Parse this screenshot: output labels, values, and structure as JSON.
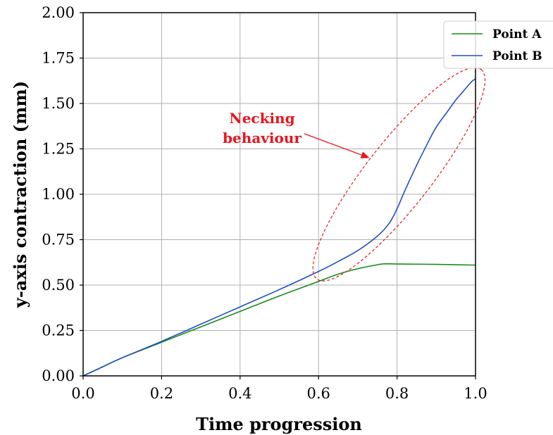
{
  "chart_data": {
    "type": "line",
    "title": "",
    "xlabel": "Time progression",
    "ylabel": "y-axis contraction (mm)",
    "xlim": [
      0.0,
      1.0
    ],
    "ylim": [
      0.0,
      2.0
    ],
    "xticks": [
      "0.0",
      "0.2",
      "0.4",
      "0.6",
      "0.8",
      "1.0"
    ],
    "yticks": [
      "0.00",
      "0.25",
      "0.50",
      "0.75",
      "1.00",
      "1.25",
      "1.50",
      "1.75",
      "2.00"
    ],
    "grid": true,
    "legend_position": "top-right",
    "series": [
      {
        "name": "Point A",
        "color": "#1a8a1a",
        "x": [
          0.0,
          0.02,
          0.05,
          0.1,
          0.2,
          0.3,
          0.4,
          0.5,
          0.6,
          0.65,
          0.7,
          0.75,
          0.77,
          0.8,
          0.9,
          1.0
        ],
        "y": [
          0.0,
          0.02,
          0.05,
          0.1,
          0.185,
          0.27,
          0.355,
          0.44,
          0.52,
          0.56,
          0.59,
          0.612,
          0.617,
          0.616,
          0.614,
          0.61
        ]
      },
      {
        "name": "Point B",
        "color": "#1f4fc4",
        "x": [
          0.0,
          0.02,
          0.05,
          0.1,
          0.2,
          0.3,
          0.4,
          0.5,
          0.6,
          0.65,
          0.7,
          0.75,
          0.78,
          0.8,
          0.82,
          0.85,
          0.88,
          0.9,
          0.93,
          0.95,
          0.97,
          0.99,
          1.0
        ],
        "y": [
          0.0,
          0.02,
          0.05,
          0.1,
          0.19,
          0.285,
          0.38,
          0.475,
          0.575,
          0.63,
          0.69,
          0.77,
          0.84,
          0.92,
          1.02,
          1.16,
          1.29,
          1.37,
          1.46,
          1.52,
          1.57,
          1.62,
          1.635
        ]
      }
    ],
    "annotation": {
      "text_lines": [
        "Necking",
        "behaviour"
      ],
      "color": "#e8141e",
      "arrow_target": {
        "x": 0.73,
        "y": 1.2
      },
      "ellipse": {
        "from": {
          "x": 0.62,
          "y": 0.6
        },
        "to": {
          "x": 0.99,
          "y": 1.62
        }
      }
    }
  }
}
